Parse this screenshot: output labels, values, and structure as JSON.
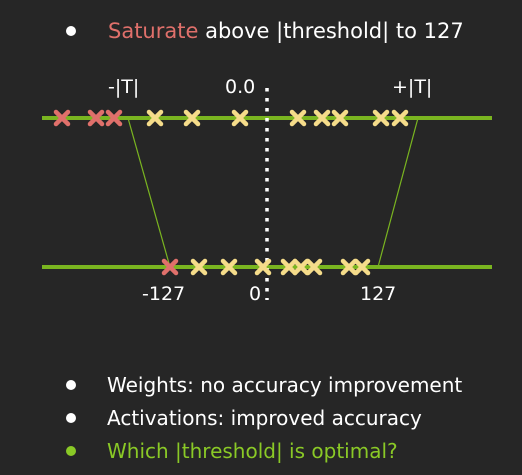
{
  "header": {
    "highlight": "Saturate",
    "rest": " above |threshold| to 127"
  },
  "labels": {
    "neg_t": "-|T|",
    "zero_top": "0.0",
    "pos_t": "+|T|",
    "neg_127": "-127",
    "zero_bottom": "0",
    "pos_127": "127"
  },
  "bullets": [
    {
      "text": "Weights: no accuracy improvement",
      "highlight": false
    },
    {
      "text": "Activations: improved accuracy",
      "highlight": false
    },
    {
      "text": "Which |threshold| is optimal?",
      "highlight": true
    }
  ],
  "colors": {
    "background": "#262626",
    "axis_green": "#7ab520",
    "saturated_x": "#e0706b",
    "kept_x": "#f5dc8a",
    "highlight_red": "#e0706b",
    "highlight_green": "#8ac926"
  },
  "icons": {
    "saturated_marker": "red-x-icon",
    "kept_marker": "yellow-x-icon"
  }
}
